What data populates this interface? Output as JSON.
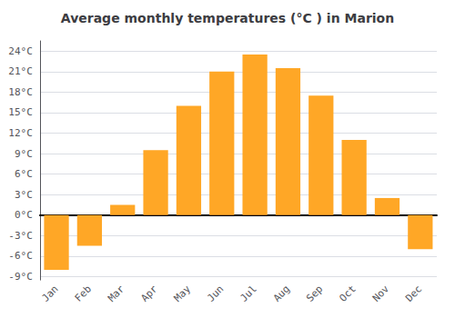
{
  "chart_data": {
    "type": "bar",
    "title": "Average monthly temperatures (°C ) in Marion",
    "categories": [
      "Jan",
      "Feb",
      "Mar",
      "Apr",
      "May",
      "Jun",
      "Jul",
      "Aug",
      "Sep",
      "Oct",
      "Nov",
      "Dec"
    ],
    "values": [
      -8.0,
      -4.5,
      1.5,
      9.5,
      16.0,
      21.0,
      23.5,
      21.5,
      17.5,
      11.0,
      2.5,
      -5.0
    ],
    "color": "#FFA726",
    "ylim": [
      -9.5,
      25.5
    ],
    "yticks": [
      {
        "value": -9,
        "label": "-9°C"
      },
      {
        "value": -6,
        "label": "-6°C"
      },
      {
        "value": -3,
        "label": "-3°C"
      },
      {
        "value": 0,
        "label": "0°C"
      },
      {
        "value": 3,
        "label": "3°C"
      },
      {
        "value": 6,
        "label": "6°C"
      },
      {
        "value": 9,
        "label": "9°C"
      },
      {
        "value": 12,
        "label": "12°C"
      },
      {
        "value": 15,
        "label": "15°C"
      },
      {
        "value": 18,
        "label": "18°C"
      },
      {
        "value": 21,
        "label": "21°C"
      },
      {
        "value": 24,
        "label": "24°C"
      }
    ],
    "grid": true
  }
}
